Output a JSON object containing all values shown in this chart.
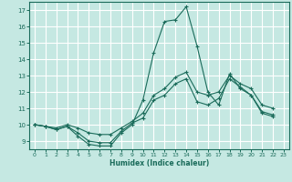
{
  "xlabel": "Humidex (Indice chaleur)",
  "xlim": [
    -0.5,
    23.5
  ],
  "ylim": [
    8.5,
    17.5
  ],
  "yticks": [
    9,
    10,
    11,
    12,
    13,
    14,
    15,
    16,
    17
  ],
  "xticks": [
    0,
    1,
    2,
    3,
    4,
    5,
    6,
    7,
    8,
    9,
    10,
    11,
    12,
    13,
    14,
    15,
    16,
    17,
    18,
    19,
    20,
    21,
    22,
    23
  ],
  "bg_color": "#c5e8e2",
  "grid_color": "#ffffff",
  "line_color": "#1a6b5a",
  "series": [
    {
      "x": [
        0,
        1,
        2,
        3,
        4,
        5,
        6,
        7,
        8,
        9,
        10,
        11,
        12,
        13,
        14,
        15,
        16,
        17,
        18,
        19,
        20,
        21,
        22,
        23
      ],
      "y": [
        10.0,
        9.9,
        9.7,
        9.9,
        9.3,
        8.8,
        8.7,
        8.7,
        9.5,
        10.0,
        11.5,
        14.4,
        16.3,
        16.4,
        17.2,
        14.8,
        12.0,
        11.2,
        13.1,
        12.2,
        11.8,
        10.7,
        10.5,
        null
      ]
    },
    {
      "x": [
        0,
        1,
        2,
        3,
        4,
        5,
        6,
        7,
        8,
        9,
        10,
        11,
        12,
        13,
        14,
        15,
        16,
        17,
        18,
        19,
        20,
        21,
        22,
        23
      ],
      "y": [
        10.0,
        9.9,
        9.7,
        9.9,
        9.5,
        9.0,
        8.9,
        8.9,
        9.6,
        10.1,
        10.4,
        11.5,
        11.8,
        12.5,
        12.8,
        11.4,
        11.2,
        11.6,
        12.8,
        12.3,
        11.8,
        10.8,
        10.6,
        null
      ]
    },
    {
      "x": [
        0,
        1,
        2,
        3,
        4,
        5,
        6,
        7,
        8,
        9,
        10,
        11,
        12,
        13,
        14,
        15,
        16,
        17,
        18,
        19,
        20,
        21,
        22,
        23
      ],
      "y": [
        10.0,
        9.9,
        9.8,
        10.0,
        9.8,
        9.5,
        9.4,
        9.4,
        9.8,
        10.2,
        10.7,
        11.8,
        12.2,
        12.9,
        13.2,
        12.0,
        11.8,
        12.0,
        13.0,
        12.5,
        12.2,
        11.2,
        11.0,
        null
      ]
    }
  ]
}
